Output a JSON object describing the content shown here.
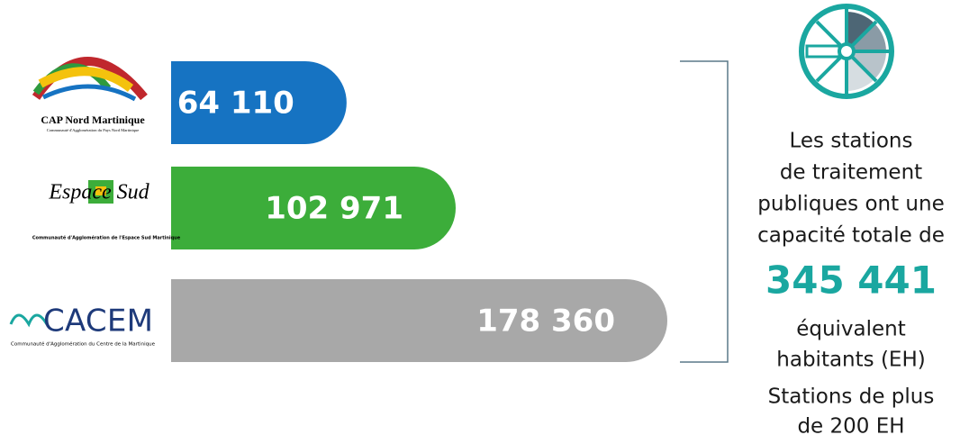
{
  "chart_data": {
    "type": "bar",
    "orientation": "horizontal",
    "categories": [
      "CAP Nord Martinique",
      "Espace Sud",
      "CACEM"
    ],
    "category_subtitles": [
      "Communauté d'Agglomération du Pays Nord Martinique",
      "Communauté d'Agglomération de l'Espace Sud Martinique",
      "Communauté d'Agglomération du Centre de la Martinique"
    ],
    "values": [
      64110,
      102971,
      178360
    ],
    "value_labels": [
      "64 110",
      "102 971",
      "178 360"
    ],
    "colors": [
      "#1673c2",
      "#3cad3a",
      "#a8a8a8"
    ],
    "description_before": [
      "Les stations",
      "de traitement",
      "publiques ont une",
      "capacité totale de"
    ],
    "total": {
      "value": 345441,
      "label": "345 441"
    },
    "description_after": [
      "équivalent",
      "habitants (EH)",
      "Stations de plus",
      "de 200 EH"
    ]
  }
}
